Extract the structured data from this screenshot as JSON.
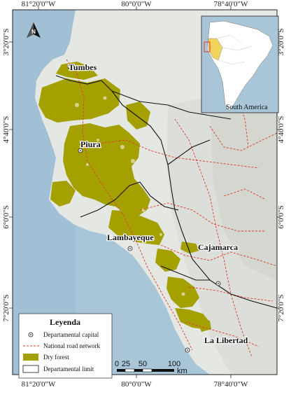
{
  "coords": {
    "top": [
      "81°20'0\"W",
      "80°0'0\"W",
      "78°40'0\"W"
    ],
    "bottom": [
      "81°20'0\"W",
      "80°0'0\"W",
      "78°40'0\"W"
    ],
    "left": [
      "3°20'0\"S",
      "4°40'0\"S",
      "6°0'0\"S",
      "7°20'0\"S"
    ],
    "right": [
      "3°20'0\"S",
      "4°40'0\"S",
      "6°0'0\"S",
      "7°20'0\"S"
    ]
  },
  "departments": {
    "tumbes": "Tumbes",
    "piura": "Piura",
    "lambayeque": "Lambayeque",
    "cajamarca": "Cajamarca",
    "la_libertad": "La Libertad"
  },
  "inset": {
    "label": "South America"
  },
  "north_arrow": {
    "label": "N"
  },
  "legend": {
    "title": "Leyenda",
    "items": [
      {
        "label": "Departamental capital",
        "symbol": "capital"
      },
      {
        "label": "National road network",
        "symbol": "road"
      },
      {
        "label": "Dry forest",
        "symbol": "forest"
      },
      {
        "label": "Departamental limit",
        "symbol": "limit"
      }
    ]
  },
  "scale": {
    "ticks": [
      "0",
      "25",
      "50",
      "100"
    ],
    "unit": "km"
  },
  "colors": {
    "ocean": "#a9c6d9",
    "land": "#e7e9e4",
    "forest": "#a3a000",
    "road": "#e0392b",
    "boundary": "#111111"
  }
}
